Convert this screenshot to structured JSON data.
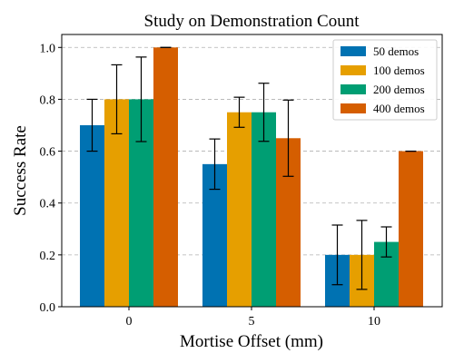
{
  "chart_data": {
    "type": "bar",
    "title": "Study on Demonstration Count",
    "xlabel": "Mortise Offset (mm)",
    "ylabel": "Success Rate",
    "categories": [
      "0",
      "5",
      "10"
    ],
    "ylim": [
      0,
      1.05
    ],
    "yticks": [
      "0.0",
      "0.2",
      "0.4",
      "0.6",
      "0.8",
      "1.0"
    ],
    "grid": true,
    "legend_position": "top-right",
    "series": [
      {
        "name": "50 demos",
        "color": "#0072b2",
        "values": [
          0.7,
          0.55,
          0.2
        ],
        "errors": [
          0.1,
          0.097,
          0.115
        ]
      },
      {
        "name": "100 demos",
        "color": "#e69f00",
        "values": [
          0.8,
          0.75,
          0.2
        ],
        "errors": [
          0.133,
          0.058,
          0.133
        ]
      },
      {
        "name": "200 demos",
        "color": "#009e73",
        "values": [
          0.8,
          0.75,
          0.25
        ],
        "errors": [
          0.163,
          0.112,
          0.058
        ]
      },
      {
        "name": "400 demos",
        "color": "#d55e00",
        "values": [
          1.0,
          0.65,
          0.6
        ],
        "errors": [
          0.0,
          0.147,
          0.0
        ]
      }
    ]
  }
}
